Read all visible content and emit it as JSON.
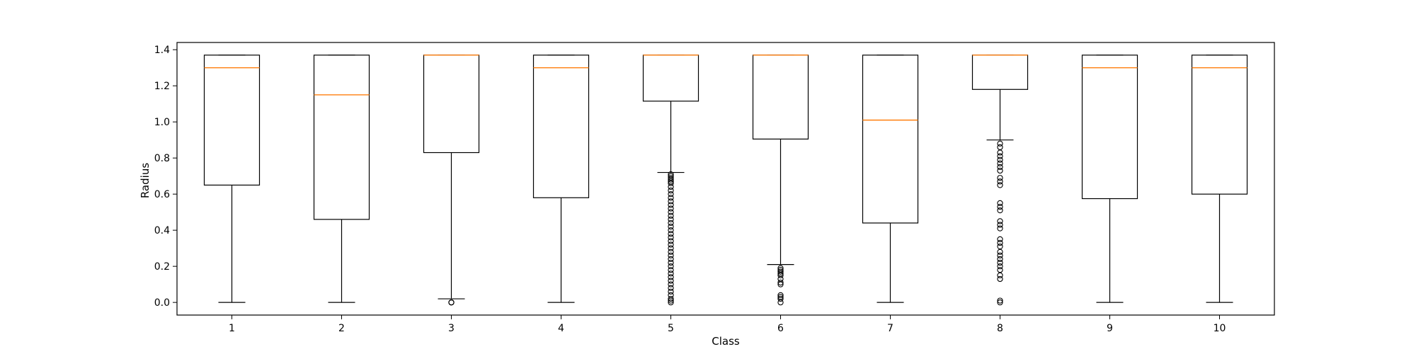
{
  "chart_data": {
    "type": "box",
    "title": "",
    "xlabel": "Class",
    "ylabel": "Radius",
    "ylim": [
      -0.07,
      1.44
    ],
    "yticks": [
      "0.0",
      "0.2",
      "0.4",
      "0.6",
      "0.8",
      "1.0",
      "1.2",
      "1.4"
    ],
    "grid": false,
    "colors": {
      "box": "#000000",
      "median": "#ff7f0e",
      "background": "#ffffff"
    },
    "categories": [
      "1",
      "2",
      "3",
      "4",
      "5",
      "6",
      "7",
      "8",
      "9",
      "10"
    ],
    "boxes": [
      {
        "category": "1",
        "whisker_low": 0.0,
        "q1": 0.65,
        "median": 1.3,
        "q3": 1.37,
        "whisker_high": 1.37,
        "outliers": []
      },
      {
        "category": "2",
        "whisker_low": 0.0,
        "q1": 0.46,
        "median": 1.15,
        "q3": 1.37,
        "whisker_high": 1.37,
        "outliers": []
      },
      {
        "category": "3",
        "whisker_low": 0.02,
        "q1": 0.83,
        "median": 1.37,
        "q3": 1.37,
        "whisker_high": 1.37,
        "outliers": [
          0.0,
          0.0,
          0.0
        ]
      },
      {
        "category": "4",
        "whisker_low": 0.0,
        "q1": 0.58,
        "median": 1.3,
        "q3": 1.37,
        "whisker_high": 1.37,
        "outliers": []
      },
      {
        "category": "5",
        "whisker_low": 0.72,
        "q1": 1.115,
        "median": 1.37,
        "q3": 1.37,
        "whisker_high": 1.37,
        "outliers": [
          0.71,
          0.7,
          0.69,
          0.68,
          0.67,
          0.66,
          0.64,
          0.62,
          0.6,
          0.58,
          0.56,
          0.54,
          0.52,
          0.5,
          0.48,
          0.46,
          0.44,
          0.42,
          0.4,
          0.38,
          0.36,
          0.34,
          0.32,
          0.3,
          0.28,
          0.26,
          0.24,
          0.22,
          0.2,
          0.18,
          0.16,
          0.14,
          0.12,
          0.1,
          0.08,
          0.06,
          0.04,
          0.02,
          0.01,
          0.0
        ]
      },
      {
        "category": "6",
        "whisker_low": 0.21,
        "q1": 0.905,
        "median": 1.37,
        "q3": 1.37,
        "whisker_high": 1.37,
        "outliers": [
          0.19,
          0.18,
          0.17,
          0.16,
          0.15,
          0.13,
          0.11,
          0.1,
          0.04,
          0.03,
          0.02,
          0.0
        ]
      },
      {
        "category": "7",
        "whisker_low": 0.0,
        "q1": 0.44,
        "median": 1.01,
        "q3": 1.37,
        "whisker_high": 1.37,
        "outliers": []
      },
      {
        "category": "8",
        "whisker_low": 0.9,
        "q1": 1.18,
        "median": 1.37,
        "q3": 1.37,
        "whisker_high": 1.37,
        "outliers": [
          0.88,
          0.86,
          0.83,
          0.81,
          0.79,
          0.77,
          0.75,
          0.73,
          0.69,
          0.67,
          0.65,
          0.55,
          0.53,
          0.51,
          0.45,
          0.43,
          0.41,
          0.35,
          0.33,
          0.31,
          0.28,
          0.26,
          0.24,
          0.22,
          0.2,
          0.18,
          0.15,
          0.13,
          0.01,
          0.0
        ]
      },
      {
        "category": "9",
        "whisker_low": 0.0,
        "q1": 0.575,
        "median": 1.3,
        "q3": 1.37,
        "whisker_high": 1.37,
        "outliers": []
      },
      {
        "category": "10",
        "whisker_low": 0.0,
        "q1": 0.6,
        "median": 1.3,
        "q3": 1.37,
        "whisker_high": 1.37,
        "outliers": []
      }
    ]
  }
}
